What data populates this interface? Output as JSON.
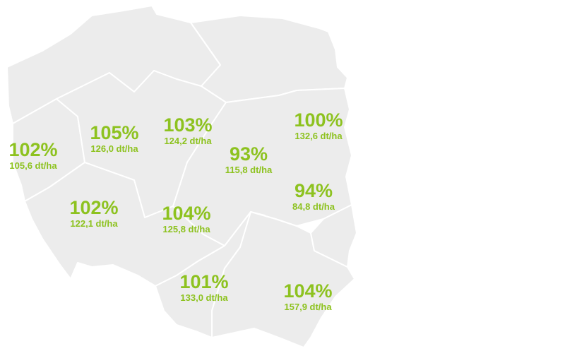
{
  "colors": {
    "region_fill": "#ececec",
    "region_border": "#ffffff",
    "text_accent": "#8dc21f"
  },
  "regions": [
    {
      "id": "far-west",
      "percent": "102%",
      "yield": "105,6 dt/ha"
    },
    {
      "id": "west-center",
      "percent": "105%",
      "yield": "126,0 dt/ha"
    },
    {
      "id": "north-center",
      "percent": "103%",
      "yield": "124,2 dt/ha"
    },
    {
      "id": "center",
      "percent": "93%",
      "yield": "115,8 dt/ha"
    },
    {
      "id": "north-east",
      "percent": "100%",
      "yield": "132,6 dt/ha"
    },
    {
      "id": "east",
      "percent": "94%",
      "yield": "84,8 dt/ha"
    },
    {
      "id": "south-west",
      "percent": "102%",
      "yield": "122,1 dt/ha"
    },
    {
      "id": "south-center",
      "percent": "104%",
      "yield": "125,8 dt/ha"
    },
    {
      "id": "south",
      "percent": "101%",
      "yield": "133,0 dt/ha"
    },
    {
      "id": "south-east",
      "percent": "104%",
      "yield": "157,9 dt/ha"
    }
  ]
}
